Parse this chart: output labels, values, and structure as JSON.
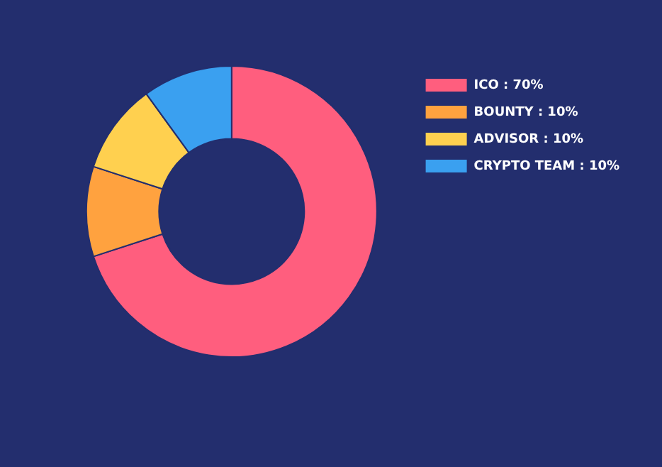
{
  "chart_data": {
    "type": "donut",
    "categories": [
      "ICO",
      "BOUNTY",
      "ADVISOR",
      "CRYPTO TEAM"
    ],
    "values": [
      70,
      10,
      10,
      10
    ],
    "value_labels": [
      "70%",
      "10%",
      "10%",
      "10%"
    ],
    "colors": [
      "#ff5e7e",
      "#ffa23f",
      "#ffd04f",
      "#3aa0f0"
    ],
    "legend": "top right"
  }
}
